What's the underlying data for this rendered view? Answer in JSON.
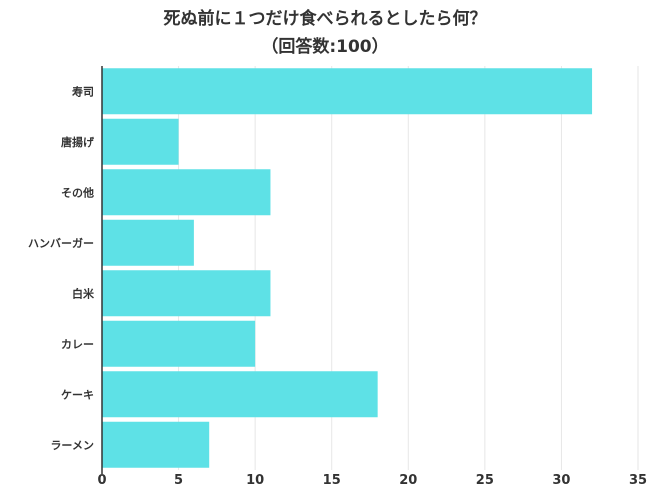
{
  "chart_data": {
    "type": "bar",
    "orientation": "horizontal",
    "title": "死ぬ前に１つだけ食べられるとしたら何？",
    "subtitle": "（回答数:100）",
    "categories": [
      "寿司",
      "唐揚げ",
      "その他",
      "ハンバーガー",
      "白米",
      "カレー",
      "ケーキ",
      "ラーメン"
    ],
    "values": [
      32,
      5,
      11,
      6,
      11,
      10,
      18,
      7
    ],
    "xlim": [
      0,
      35
    ],
    "x_ticks": [
      0,
      5,
      10,
      15,
      20,
      25,
      30,
      35
    ],
    "grid": "vertical",
    "legend": "none",
    "colors": {
      "bar": "#5ee1e6",
      "grid": "#e6e6e6",
      "axis": "#333333",
      "text": "#333333"
    }
  }
}
